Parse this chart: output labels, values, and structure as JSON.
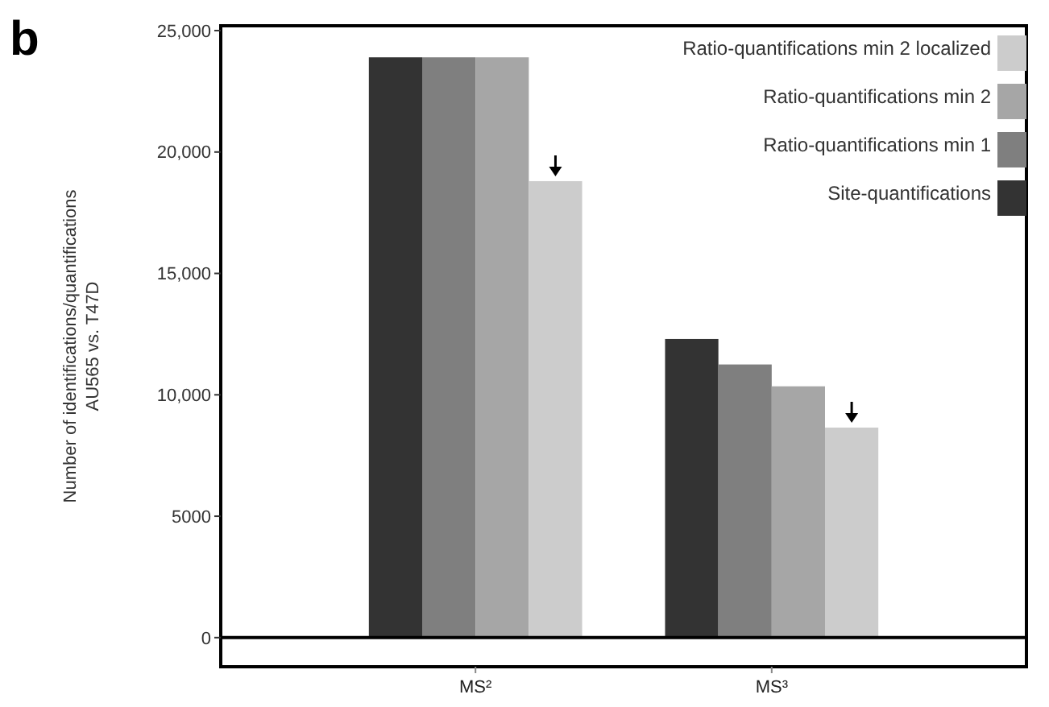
{
  "chart_data": {
    "type": "bar",
    "ylabel": "Number of identifications/quantifications\nAU565 vs. T47D",
    "annotations": [
      "b"
    ],
    "categories": [
      "MS²",
      "MS³"
    ],
    "series": [
      {
        "name": "Site-quantifications",
        "color": "#333333",
        "values": [
          23900,
          12300
        ]
      },
      {
        "name": "Ratio-quantifications min 1",
        "color": "#7f7f7f",
        "values": [
          23900,
          11250
        ]
      },
      {
        "name": "Ratio-quantifications min 2",
        "color": "#a6a6a6",
        "values": [
          23900,
          10350
        ]
      },
      {
        "name": "Ratio-quantifications min 2 localized",
        "color": "#cccccc",
        "values": [
          18800,
          8650
        ]
      }
    ],
    "ylim": [
      -1200,
      25200
    ],
    "yticks": [
      0,
      5000,
      {
        "value": 10000,
        "label": "10,000"
      },
      {
        "value": 15000,
        "label": "15,000"
      },
      {
        "value": 20000,
        "label": "20,000"
      },
      {
        "value": 25000,
        "label": "25,000"
      }
    ],
    "ref_lines": [
      {
        "axis": "y",
        "value": 0
      }
    ],
    "legend": "top right",
    "grid": false
  }
}
